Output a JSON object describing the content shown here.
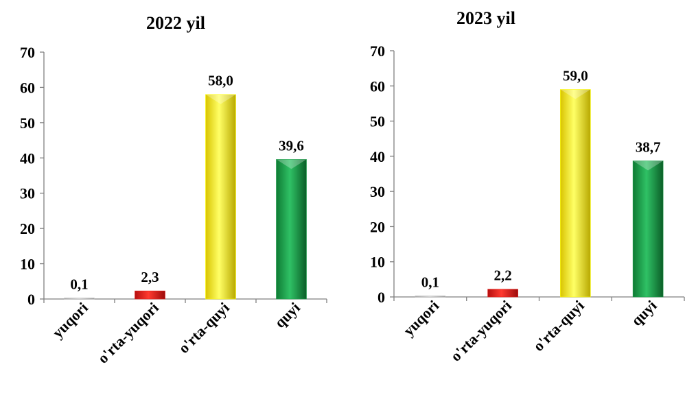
{
  "chart_data": [
    {
      "type": "bar",
      "title": "2022 yil",
      "categories": [
        "yuqori",
        "o'rta-yuqori",
        "o'rta-quyi",
        "quyi"
      ],
      "values": [
        0.1,
        2.3,
        58.0,
        39.6
      ],
      "value_labels": [
        "0,1",
        "2,3",
        "58,0",
        "39,6"
      ],
      "ylim": [
        0,
        70
      ],
      "yticks": [
        0,
        10,
        20,
        30,
        40,
        50,
        60,
        70
      ],
      "ytick_labels": [
        "0",
        "10",
        "20",
        "30",
        "40",
        "50",
        "60",
        "70"
      ],
      "xlabel": "",
      "ylabel": "",
      "grid": false,
      "bar_colors": [
        "#bfbfbf",
        "#e41b17",
        "#ffff00",
        "#1a9e48"
      ]
    },
    {
      "type": "bar",
      "title": "2023 yil",
      "categories": [
        "yuqori",
        "o'rta-yuqori",
        "o'rta-quyi",
        "quyi"
      ],
      "values": [
        0.1,
        2.2,
        59.0,
        38.7
      ],
      "value_labels": [
        "0,1",
        "2,2",
        "59,0",
        "38,7"
      ],
      "ylim": [
        0,
        70
      ],
      "yticks": [
        0,
        10,
        20,
        30,
        40,
        50,
        60,
        70
      ],
      "ytick_labels": [
        "0",
        "10",
        "20",
        "30",
        "40",
        "50",
        "60",
        "70"
      ],
      "xlabel": "",
      "ylabel": "",
      "grid": false,
      "bar_colors": [
        "#bfbfbf",
        "#e41b17",
        "#ffff00",
        "#1a9e48"
      ]
    }
  ]
}
